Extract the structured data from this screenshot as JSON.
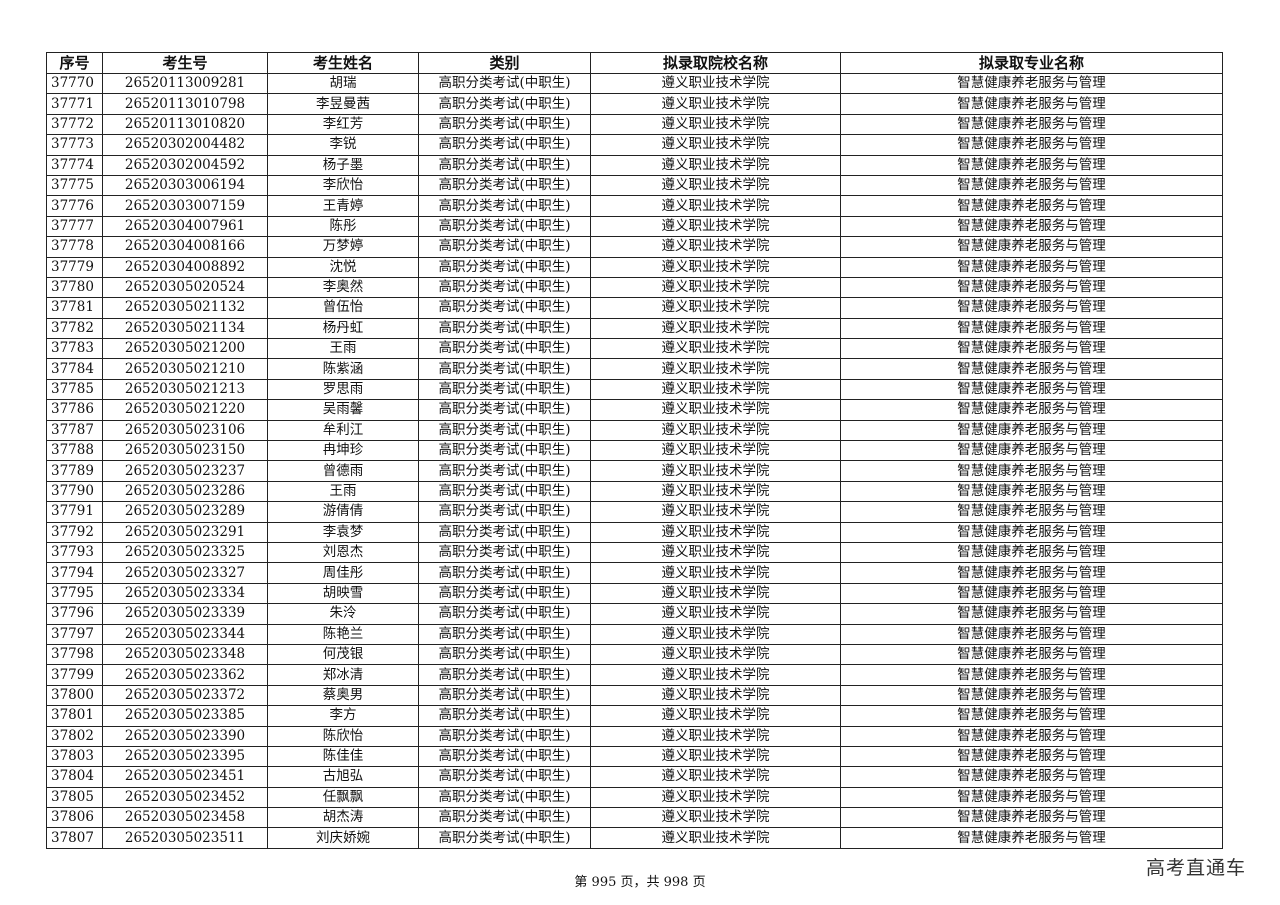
{
  "table": {
    "headers": [
      "序号",
      "考生号",
      "考生姓名",
      "类别",
      "拟录取院校名称",
      "拟录取专业名称"
    ],
    "rows": [
      [
        "37770",
        "26520113009281",
        "胡瑞",
        "高职分类考试(中职生)",
        "遵义职业技术学院",
        "智慧健康养老服务与管理"
      ],
      [
        "37771",
        "26520113010798",
        "李昱曼茜",
        "高职分类考试(中职生)",
        "遵义职业技术学院",
        "智慧健康养老服务与管理"
      ],
      [
        "37772",
        "26520113010820",
        "李红芳",
        "高职分类考试(中职生)",
        "遵义职业技术学院",
        "智慧健康养老服务与管理"
      ],
      [
        "37773",
        "26520302004482",
        "李锐",
        "高职分类考试(中职生)",
        "遵义职业技术学院",
        "智慧健康养老服务与管理"
      ],
      [
        "37774",
        "26520302004592",
        "杨子墨",
        "高职分类考试(中职生)",
        "遵义职业技术学院",
        "智慧健康养老服务与管理"
      ],
      [
        "37775",
        "26520303006194",
        "李欣怡",
        "高职分类考试(中职生)",
        "遵义职业技术学院",
        "智慧健康养老服务与管理"
      ],
      [
        "37776",
        "26520303007159",
        "王青婷",
        "高职分类考试(中职生)",
        "遵义职业技术学院",
        "智慧健康养老服务与管理"
      ],
      [
        "37777",
        "26520304007961",
        "陈彤",
        "高职分类考试(中职生)",
        "遵义职业技术学院",
        "智慧健康养老服务与管理"
      ],
      [
        "37778",
        "26520304008166",
        "万梦婷",
        "高职分类考试(中职生)",
        "遵义职业技术学院",
        "智慧健康养老服务与管理"
      ],
      [
        "37779",
        "26520304008892",
        "沈悦",
        "高职分类考试(中职生)",
        "遵义职业技术学院",
        "智慧健康养老服务与管理"
      ],
      [
        "37780",
        "26520305020524",
        "李奥然",
        "高职分类考试(中职生)",
        "遵义职业技术学院",
        "智慧健康养老服务与管理"
      ],
      [
        "37781",
        "26520305021132",
        "曾伍怡",
        "高职分类考试(中职生)",
        "遵义职业技术学院",
        "智慧健康养老服务与管理"
      ],
      [
        "37782",
        "26520305021134",
        "杨丹虹",
        "高职分类考试(中职生)",
        "遵义职业技术学院",
        "智慧健康养老服务与管理"
      ],
      [
        "37783",
        "26520305021200",
        "王雨",
        "高职分类考试(中职生)",
        "遵义职业技术学院",
        "智慧健康养老服务与管理"
      ],
      [
        "37784",
        "26520305021210",
        "陈紫涵",
        "高职分类考试(中职生)",
        "遵义职业技术学院",
        "智慧健康养老服务与管理"
      ],
      [
        "37785",
        "26520305021213",
        "罗思雨",
        "高职分类考试(中职生)",
        "遵义职业技术学院",
        "智慧健康养老服务与管理"
      ],
      [
        "37786",
        "26520305021220",
        "吴雨馨",
        "高职分类考试(中职生)",
        "遵义职业技术学院",
        "智慧健康养老服务与管理"
      ],
      [
        "37787",
        "26520305023106",
        "牟利江",
        "高职分类考试(中职生)",
        "遵义职业技术学院",
        "智慧健康养老服务与管理"
      ],
      [
        "37788",
        "26520305023150",
        "冉坤珍",
        "高职分类考试(中职生)",
        "遵义职业技术学院",
        "智慧健康养老服务与管理"
      ],
      [
        "37789",
        "26520305023237",
        "曾德雨",
        "高职分类考试(中职生)",
        "遵义职业技术学院",
        "智慧健康养老服务与管理"
      ],
      [
        "37790",
        "26520305023286",
        "王雨",
        "高职分类考试(中职生)",
        "遵义职业技术学院",
        "智慧健康养老服务与管理"
      ],
      [
        "37791",
        "26520305023289",
        "游倩倩",
        "高职分类考试(中职生)",
        "遵义职业技术学院",
        "智慧健康养老服务与管理"
      ],
      [
        "37792",
        "26520305023291",
        "李袁梦",
        "高职分类考试(中职生)",
        "遵义职业技术学院",
        "智慧健康养老服务与管理"
      ],
      [
        "37793",
        "26520305023325",
        "刘恩杰",
        "高职分类考试(中职生)",
        "遵义职业技术学院",
        "智慧健康养老服务与管理"
      ],
      [
        "37794",
        "26520305023327",
        "周佳彤",
        "高职分类考试(中职生)",
        "遵义职业技术学院",
        "智慧健康养老服务与管理"
      ],
      [
        "37795",
        "26520305023334",
        "胡映雪",
        "高职分类考试(中职生)",
        "遵义职业技术学院",
        "智慧健康养老服务与管理"
      ],
      [
        "37796",
        "26520305023339",
        "朱泠",
        "高职分类考试(中职生)",
        "遵义职业技术学院",
        "智慧健康养老服务与管理"
      ],
      [
        "37797",
        "26520305023344",
        "陈艳兰",
        "高职分类考试(中职生)",
        "遵义职业技术学院",
        "智慧健康养老服务与管理"
      ],
      [
        "37798",
        "26520305023348",
        "何茂银",
        "高职分类考试(中职生)",
        "遵义职业技术学院",
        "智慧健康养老服务与管理"
      ],
      [
        "37799",
        "26520305023362",
        "郑冰清",
        "高职分类考试(中职生)",
        "遵义职业技术学院",
        "智慧健康养老服务与管理"
      ],
      [
        "37800",
        "26520305023372",
        "蔡奥男",
        "高职分类考试(中职生)",
        "遵义职业技术学院",
        "智慧健康养老服务与管理"
      ],
      [
        "37801",
        "26520305023385",
        "李方",
        "高职分类考试(中职生)",
        "遵义职业技术学院",
        "智慧健康养老服务与管理"
      ],
      [
        "37802",
        "26520305023390",
        "陈欣怡",
        "高职分类考试(中职生)",
        "遵义职业技术学院",
        "智慧健康养老服务与管理"
      ],
      [
        "37803",
        "26520305023395",
        "陈佳佳",
        "高职分类考试(中职生)",
        "遵义职业技术学院",
        "智慧健康养老服务与管理"
      ],
      [
        "37804",
        "26520305023451",
        "古旭弘",
        "高职分类考试(中职生)",
        "遵义职业技术学院",
        "智慧健康养老服务与管理"
      ],
      [
        "37805",
        "26520305023452",
        "任飘飘",
        "高职分类考试(中职生)",
        "遵义职业技术学院",
        "智慧健康养老服务与管理"
      ],
      [
        "37806",
        "26520305023458",
        "胡杰涛",
        "高职分类考试(中职生)",
        "遵义职业技术学院",
        "智慧健康养老服务与管理"
      ],
      [
        "37807",
        "26520305023511",
        "刘庆娇婉",
        "高职分类考试(中职生)",
        "遵义职业技术学院",
        "智慧健康养老服务与管理"
      ]
    ]
  },
  "footer": {
    "page_text": "第 995 页，共 998 页"
  },
  "watermark": {
    "brand": "高考直通车"
  }
}
